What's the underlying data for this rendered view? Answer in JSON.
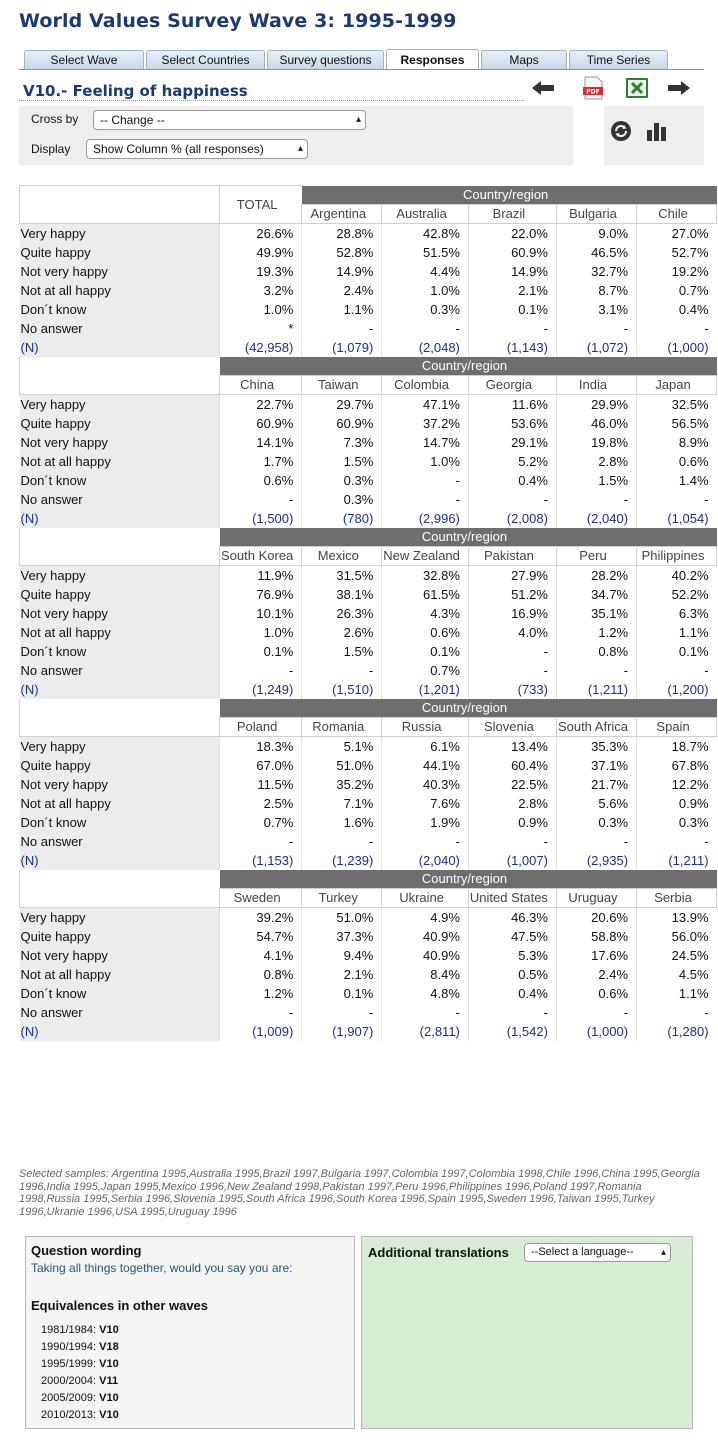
{
  "title": "World Values Survey Wave 3: 1995-1999",
  "tabs": [
    {
      "label": "Select Wave",
      "active": false
    },
    {
      "label": "Select Countries",
      "active": false
    },
    {
      "label": "Survey questions",
      "active": false
    },
    {
      "label": "Responses",
      "active": true
    },
    {
      "label": "Maps",
      "active": false
    },
    {
      "label": "Time Series",
      "active": false
    }
  ],
  "variable_title": "V10.- Feeling of happiness",
  "toolbar_icons": [
    "back-arrow-icon",
    "pdf-icon",
    "excel-icon",
    "forward-arrow-icon"
  ],
  "controls": {
    "cross_by_label": "Cross by",
    "cross_by_value": "-- Change --",
    "display_label": "Display",
    "display_value": "Show Column % (all responses)"
  },
  "tool_icons": [
    "refresh-icon",
    "bar-chart-icon"
  ],
  "colors": {
    "title": "#1b3a73",
    "band": "#6e6e6e",
    "n_value": "#1a2f8a",
    "translation_bg": "#d6edd4"
  },
  "table": {
    "total_label": "TOTAL",
    "band_label": "Country/region",
    "row_labels": [
      "Very happy",
      "Quite happy",
      "Not very happy",
      "Not at all happy",
      "Don´t know",
      "No answer",
      "(N)"
    ],
    "total_values": [
      "26.6%",
      "49.9%",
      "19.3%",
      "3.2%",
      "1.0%",
      "*",
      "(42,958)"
    ],
    "blocks": [
      {
        "countries": [
          "Argentina",
          "Australia",
          "Brazil",
          "Bulgaria",
          "Chile"
        ],
        "rows": [
          [
            "28.8%",
            "42.8%",
            "22.0%",
            "9.0%",
            "27.0%"
          ],
          [
            "52.8%",
            "51.5%",
            "60.9%",
            "46.5%",
            "52.7%"
          ],
          [
            "14.9%",
            "4.4%",
            "14.9%",
            "32.7%",
            "19.2%"
          ],
          [
            "2.4%",
            "1.0%",
            "2.1%",
            "8.7%",
            "0.7%"
          ],
          [
            "1.1%",
            "0.3%",
            "0.1%",
            "3.1%",
            "0.4%"
          ],
          [
            "-",
            "-",
            "-",
            "-",
            "-"
          ],
          [
            "(1,079)",
            "(2,048)",
            "(1,143)",
            "(1,072)",
            "(1,000)"
          ]
        ]
      },
      {
        "countries": [
          "China",
          "Taiwan",
          "Colombia",
          "Georgia",
          "India",
          "Japan"
        ],
        "rows": [
          [
            "22.7%",
            "29.7%",
            "47.1%",
            "11.6%",
            "29.9%",
            "32.5%"
          ],
          [
            "60.9%",
            "60.9%",
            "37.2%",
            "53.6%",
            "46.0%",
            "56.5%"
          ],
          [
            "14.1%",
            "7.3%",
            "14.7%",
            "29.1%",
            "19.8%",
            "8.9%"
          ],
          [
            "1.7%",
            "1.5%",
            "1.0%",
            "5.2%",
            "2.8%",
            "0.6%"
          ],
          [
            "0.6%",
            "0.3%",
            "-",
            "0.4%",
            "1.5%",
            "1.4%"
          ],
          [
            "-",
            "0.3%",
            "-",
            "-",
            "-",
            "-"
          ],
          [
            "(1,500)",
            "(780)",
            "(2,996)",
            "(2,008)",
            "(2,040)",
            "(1,054)"
          ]
        ]
      },
      {
        "countries": [
          "South Korea",
          "Mexico",
          "New Zealand",
          "Pakistan",
          "Peru",
          "Philippines"
        ],
        "rows": [
          [
            "11.9%",
            "31.5%",
            "32.8%",
            "27.9%",
            "28.2%",
            "40.2%"
          ],
          [
            "76.9%",
            "38.1%",
            "61.5%",
            "51.2%",
            "34.7%",
            "52.2%"
          ],
          [
            "10.1%",
            "26.3%",
            "4.3%",
            "16.9%",
            "35.1%",
            "6.3%"
          ],
          [
            "1.0%",
            "2.6%",
            "0.6%",
            "4.0%",
            "1.2%",
            "1.1%"
          ],
          [
            "0.1%",
            "1.5%",
            "0.1%",
            "-",
            "0.8%",
            "0.1%"
          ],
          [
            "-",
            "-",
            "0.7%",
            "-",
            "-",
            "-"
          ],
          [
            "(1,249)",
            "(1,510)",
            "(1,201)",
            "(733)",
            "(1,211)",
            "(1,200)"
          ]
        ]
      },
      {
        "countries": [
          "Poland",
          "Romania",
          "Russia",
          "Slovenia",
          "South Africa",
          "Spain"
        ],
        "rows": [
          [
            "18.3%",
            "5.1%",
            "6.1%",
            "13.4%",
            "35.3%",
            "18.7%"
          ],
          [
            "67.0%",
            "51.0%",
            "44.1%",
            "60.4%",
            "37.1%",
            "67.8%"
          ],
          [
            "11.5%",
            "35.2%",
            "40.3%",
            "22.5%",
            "21.7%",
            "12.2%"
          ],
          [
            "2.5%",
            "7.1%",
            "7.6%",
            "2.8%",
            "5.6%",
            "0.9%"
          ],
          [
            "0.7%",
            "1.6%",
            "1.9%",
            "0.9%",
            "0.3%",
            "0.3%"
          ],
          [
            "-",
            "-",
            "-",
            "-",
            "-",
            "-"
          ],
          [
            "(1,153)",
            "(1,239)",
            "(2,040)",
            "(1,007)",
            "(2,935)",
            "(1,211)"
          ]
        ]
      },
      {
        "countries": [
          "Sweden",
          "Turkey",
          "Ukraine",
          "United States",
          "Uruguay",
          "Serbia"
        ],
        "rows": [
          [
            "39.2%",
            "51.0%",
            "4.9%",
            "46.3%",
            "20.6%",
            "13.9%"
          ],
          [
            "54.7%",
            "37.3%",
            "40.9%",
            "47.5%",
            "58.8%",
            "56.0%"
          ],
          [
            "4.1%",
            "9.4%",
            "40.9%",
            "5.3%",
            "17.6%",
            "24.5%"
          ],
          [
            "0.8%",
            "2.1%",
            "8.4%",
            "0.5%",
            "2.4%",
            "4.5%"
          ],
          [
            "1.2%",
            "0.1%",
            "4.8%",
            "0.4%",
            "0.6%",
            "1.1%"
          ],
          [
            "-",
            "-",
            "-",
            "-",
            "-",
            "-"
          ],
          [
            "(1,009)",
            "(1,907)",
            "(2,811)",
            "(1,542)",
            "(1,000)",
            "(1,280)"
          ]
        ]
      }
    ]
  },
  "selected_samples": "Selected samples: Argentina 1995,Australia 1995,Brazil 1997,Bulgaria 1997,Colombia 1997,Colombia 1998,Chile 1996,China 1995,Georgia 1996,India 1995,Japan 1995,Mexico 1996,New Zealand 1998,Pakistan 1997,Peru 1996,Philippines 1996,Poland 1997,Romania 1998,Russia 1995,Serbia 1996,Slovenia 1995,South Africa 1996,South Korea 1996,Spain 1995,Sweden 1996,Taiwan 1995,Turkey 1996,Ukranie 1996,USA 1995,Uruguay 1996",
  "question": {
    "heading": "Question wording",
    "text": "Taking all things together, would you say you are:",
    "equivalences_heading": "Equivalences in other waves",
    "equivalences": [
      {
        "period": "1981/1984:",
        "var": "V10"
      },
      {
        "period": "1990/1994:",
        "var": "V18"
      },
      {
        "period": "1995/1999:",
        "var": "V10"
      },
      {
        "period": "2000/2004:",
        "var": "V11"
      },
      {
        "period": "2005/2009:",
        "var": "V10"
      },
      {
        "period": "2010/2013:",
        "var": "V10"
      }
    ]
  },
  "translations": {
    "heading": "Additional translations",
    "select_value": "--Select a language--"
  }
}
